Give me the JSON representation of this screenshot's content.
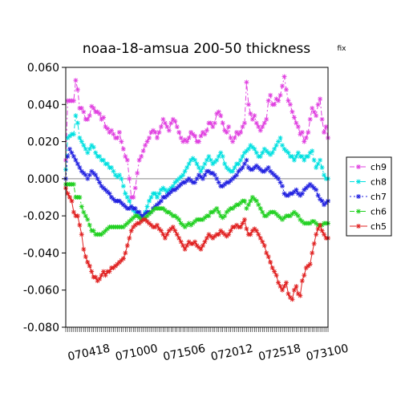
{
  "chart_data": {
    "type": "line",
    "title": "noaa-18-amsua   200-50 thickness",
    "title_note": "fix",
    "xlabel": "",
    "ylabel": "",
    "ylim": [
      -0.08,
      0.06
    ],
    "yticks": [
      -0.08,
      -0.06,
      -0.04,
      -0.02,
      0.0,
      0.02,
      0.04,
      0.06
    ],
    "ytick_labels": [
      "-0.080",
      "-0.060",
      "-0.040",
      "-0.020",
      "0.000",
      "0.020",
      "0.040",
      "0.060"
    ],
    "x_tick_labels": [
      "070418",
      "071000",
      "071506",
      "072012",
      "072518",
      "073100"
    ],
    "x_label_positions": [
      12,
      36,
      60,
      84,
      108,
      132
    ],
    "xlim": [
      0,
      132
    ],
    "reference_line": 0.0,
    "legend_position": "right",
    "series": [
      {
        "name": "ch9",
        "color": "#e040e0",
        "dash": "6,3,2,3",
        "values": [
          0.01,
          0.042,
          0.042,
          0.042,
          0.042,
          0.053,
          0.048,
          0.038,
          0.038,
          0.036,
          0.032,
          0.032,
          0.034,
          0.039,
          0.038,
          0.036,
          0.036,
          0.035,
          0.032,
          0.033,
          0.028,
          0.027,
          0.025,
          0.026,
          0.024,
          0.022,
          0.022,
          0.025,
          0.02,
          0.016,
          0.012,
          0.01,
          0.0,
          -0.01,
          -0.01,
          -0.005,
          0.003,
          0.01,
          0.012,
          0.015,
          0.018,
          0.02,
          0.022,
          0.025,
          0.026,
          0.025,
          0.022,
          0.025,
          0.028,
          0.032,
          0.03,
          0.028,
          0.026,
          0.03,
          0.032,
          0.031,
          0.028,
          0.025,
          0.022,
          0.02,
          0.021,
          0.02,
          0.022,
          0.025,
          0.024,
          0.023,
          0.02,
          0.02,
          0.023,
          0.025,
          0.024,
          0.026,
          0.03,
          0.03,
          0.028,
          0.03,
          0.035,
          0.036,
          0.034,
          0.03,
          0.026,
          0.025,
          0.028,
          0.022,
          0.02,
          0.022,
          0.025,
          0.024,
          0.025,
          0.028,
          0.03,
          0.052,
          0.04,
          0.035,
          0.032,
          0.034,
          0.03,
          0.028,
          0.026,
          0.028,
          0.03,
          0.032,
          0.042,
          0.045,
          0.04,
          0.04,
          0.043,
          0.042,
          0.045,
          0.05,
          0.055,
          0.048,
          0.042,
          0.04,
          0.036,
          0.033,
          0.03,
          0.028,
          0.024,
          0.025,
          0.02,
          0.022,
          0.025,
          0.032,
          0.038,
          0.036,
          0.034,
          0.04,
          0.043,
          0.032,
          0.025,
          0.028,
          0.022
        ]
      },
      {
        "name": "ch8",
        "color": "#00e0e0",
        "dash": "6,3,2,3",
        "values": [
          0.005,
          0.022,
          0.023,
          0.024,
          0.024,
          0.034,
          0.03,
          0.022,
          0.02,
          0.018,
          0.016,
          0.014,
          0.016,
          0.018,
          0.017,
          0.014,
          0.012,
          0.012,
          0.01,
          0.01,
          0.008,
          0.008,
          0.006,
          0.006,
          0.004,
          0.002,
          0.001,
          0.002,
          0.0,
          -0.004,
          -0.008,
          -0.01,
          -0.012,
          -0.015,
          -0.017,
          -0.018,
          -0.018,
          -0.02,
          -0.022,
          -0.02,
          -0.018,
          -0.015,
          -0.012,
          -0.01,
          -0.008,
          -0.008,
          -0.01,
          -0.008,
          -0.006,
          -0.005,
          -0.006,
          -0.007,
          -0.006,
          -0.005,
          -0.004,
          -0.002,
          -0.001,
          0.0,
          0.001,
          0.002,
          0.004,
          0.006,
          0.008,
          0.01,
          0.011,
          0.01,
          0.008,
          0.006,
          0.004,
          0.006,
          0.008,
          0.01,
          0.012,
          0.01,
          0.008,
          0.009,
          0.01,
          0.012,
          0.014,
          0.012,
          0.008,
          0.006,
          0.005,
          0.004,
          0.004,
          0.006,
          0.008,
          0.008,
          0.01,
          0.012,
          0.014,
          0.015,
          0.016,
          0.018,
          0.017,
          0.016,
          0.014,
          0.012,
          0.012,
          0.014,
          0.016,
          0.015,
          0.014,
          0.013,
          0.014,
          0.016,
          0.018,
          0.02,
          0.022,
          0.018,
          0.016,
          0.015,
          0.014,
          0.012,
          0.012,
          0.01,
          0.012,
          0.014,
          0.012,
          0.012,
          0.01,
          0.012,
          0.012,
          0.014,
          0.015,
          0.01,
          0.006,
          0.008,
          0.01,
          0.006,
          0.002,
          0.0,
          0.0
        ]
      },
      {
        "name": "ch7",
        "color": "#2020e0",
        "dash": "2,3",
        "values": [
          0.0,
          0.012,
          0.016,
          0.014,
          0.012,
          0.01,
          0.008,
          0.006,
          0.004,
          0.003,
          0.002,
          0.0,
          0.002,
          0.004,
          0.003,
          0.002,
          0.0,
          -0.002,
          -0.004,
          -0.005,
          -0.006,
          -0.007,
          -0.008,
          -0.01,
          -0.011,
          -0.012,
          -0.012,
          -0.012,
          -0.013,
          -0.014,
          -0.015,
          -0.016,
          -0.016,
          -0.015,
          -0.016,
          -0.016,
          -0.018,
          -0.018,
          -0.02,
          -0.02,
          -0.019,
          -0.018,
          -0.018,
          -0.018,
          -0.016,
          -0.015,
          -0.014,
          -0.013,
          -0.012,
          -0.01,
          -0.01,
          -0.009,
          -0.008,
          -0.007,
          -0.006,
          -0.006,
          -0.005,
          -0.004,
          -0.003,
          -0.002,
          -0.002,
          -0.001,
          0.0,
          -0.001,
          -0.002,
          -0.002,
          0.0,
          0.002,
          0.001,
          0.0,
          0.002,
          0.004,
          0.004,
          0.003,
          0.003,
          0.002,
          0.0,
          -0.002,
          -0.004,
          -0.004,
          -0.003,
          -0.002,
          -0.002,
          -0.001,
          0.0,
          0.001,
          0.002,
          0.004,
          0.005,
          0.006,
          0.008,
          0.01,
          0.006,
          0.005,
          0.005,
          0.006,
          0.007,
          0.006,
          0.005,
          0.004,
          0.004,
          0.005,
          0.006,
          0.004,
          0.003,
          0.002,
          0.001,
          0.0,
          -0.002,
          -0.004,
          -0.008,
          -0.009,
          -0.009,
          -0.008,
          -0.008,
          -0.007,
          -0.006,
          -0.008,
          -0.009,
          -0.008,
          -0.006,
          -0.005,
          -0.004,
          -0.003,
          -0.004,
          -0.005,
          -0.006,
          -0.009,
          -0.011,
          -0.012,
          -0.014,
          -0.013,
          -0.012
        ]
      },
      {
        "name": "ch6",
        "color": "#20d020",
        "dash": "6,3,2,3",
        "values": [
          -0.003,
          -0.003,
          -0.003,
          -0.003,
          -0.003,
          -0.01,
          -0.01,
          -0.01,
          -0.015,
          -0.018,
          -0.02,
          -0.022,
          -0.025,
          -0.028,
          -0.028,
          -0.03,
          -0.03,
          -0.03,
          -0.03,
          -0.029,
          -0.028,
          -0.027,
          -0.026,
          -0.026,
          -0.026,
          -0.026,
          -0.026,
          -0.026,
          -0.026,
          -0.026,
          -0.025,
          -0.024,
          -0.023,
          -0.022,
          -0.021,
          -0.02,
          -0.02,
          -0.021,
          -0.022,
          -0.022,
          -0.021,
          -0.02,
          -0.019,
          -0.018,
          -0.017,
          -0.016,
          -0.016,
          -0.016,
          -0.016,
          -0.016,
          -0.017,
          -0.018,
          -0.018,
          -0.019,
          -0.02,
          -0.02,
          -0.021,
          -0.022,
          -0.024,
          -0.025,
          -0.026,
          -0.025,
          -0.024,
          -0.025,
          -0.024,
          -0.023,
          -0.022,
          -0.022,
          -0.022,
          -0.022,
          -0.021,
          -0.02,
          -0.02,
          -0.018,
          -0.018,
          -0.017,
          -0.016,
          -0.018,
          -0.02,
          -0.021,
          -0.02,
          -0.018,
          -0.017,
          -0.016,
          -0.016,
          -0.015,
          -0.014,
          -0.014,
          -0.013,
          -0.012,
          -0.012,
          -0.016,
          -0.014,
          -0.012,
          -0.01,
          -0.011,
          -0.012,
          -0.014,
          -0.016,
          -0.018,
          -0.02,
          -0.02,
          -0.019,
          -0.018,
          -0.018,
          -0.018,
          -0.019,
          -0.02,
          -0.021,
          -0.022,
          -0.021,
          -0.02,
          -0.02,
          -0.02,
          -0.019,
          -0.018,
          -0.019,
          -0.02,
          -0.022,
          -0.023,
          -0.024,
          -0.024,
          -0.024,
          -0.024,
          -0.023,
          -0.023,
          -0.024,
          -0.025,
          -0.025,
          -0.025,
          -0.024,
          -0.024,
          -0.024
        ]
      },
      {
        "name": "ch5",
        "color": "#e02020",
        "dash": "",
        "values": [
          -0.005,
          -0.008,
          -0.01,
          -0.012,
          -0.018,
          -0.02,
          -0.02,
          -0.025,
          -0.03,
          -0.038,
          -0.042,
          -0.045,
          -0.047,
          -0.05,
          -0.053,
          -0.053,
          -0.055,
          -0.054,
          -0.052,
          -0.05,
          -0.052,
          -0.05,
          -0.05,
          -0.048,
          -0.048,
          -0.047,
          -0.046,
          -0.045,
          -0.044,
          -0.043,
          -0.04,
          -0.036,
          -0.032,
          -0.028,
          -0.026,
          -0.025,
          -0.024,
          -0.024,
          -0.023,
          -0.022,
          -0.022,
          -0.023,
          -0.024,
          -0.025,
          -0.026,
          -0.026,
          -0.025,
          -0.027,
          -0.028,
          -0.03,
          -0.032,
          -0.03,
          -0.028,
          -0.027,
          -0.026,
          -0.028,
          -0.03,
          -0.032,
          -0.034,
          -0.036,
          -0.038,
          -0.036,
          -0.034,
          -0.035,
          -0.035,
          -0.034,
          -0.036,
          -0.037,
          -0.038,
          -0.036,
          -0.034,
          -0.032,
          -0.03,
          -0.031,
          -0.032,
          -0.031,
          -0.03,
          -0.03,
          -0.028,
          -0.029,
          -0.03,
          -0.031,
          -0.03,
          -0.028,
          -0.026,
          -0.026,
          -0.025,
          -0.026,
          -0.026,
          -0.024,
          -0.022,
          -0.027,
          -0.03,
          -0.03,
          -0.028,
          -0.027,
          -0.028,
          -0.03,
          -0.032,
          -0.034,
          -0.036,
          -0.04,
          -0.042,
          -0.045,
          -0.048,
          -0.05,
          -0.052,
          -0.056,
          -0.058,
          -0.06,
          -0.058,
          -0.056,
          -0.062,
          -0.064,
          -0.065,
          -0.06,
          -0.058,
          -0.062,
          -0.063,
          -0.055,
          -0.052,
          -0.048,
          -0.047,
          -0.046,
          -0.04,
          -0.035,
          -0.03,
          -0.027,
          -0.025,
          -0.028,
          -0.03,
          -0.032,
          -0.032
        ]
      }
    ]
  }
}
